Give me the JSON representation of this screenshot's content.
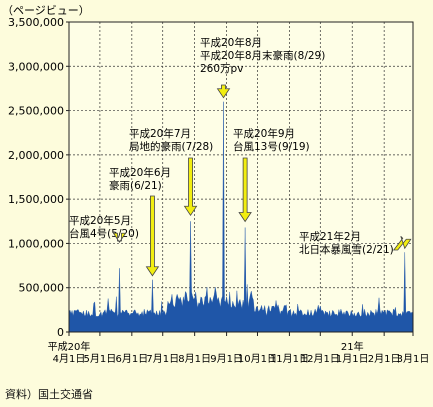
{
  "source": "資料）国土交通省",
  "chart_data": {
    "type": "area",
    "ylabel": "（ページビュー）",
    "ylim": [
      0,
      3500000
    ],
    "yticks": [
      0,
      500000,
      1000000,
      1500000,
      2000000,
      2500000,
      3000000,
      3500000
    ],
    "ytick_labels": [
      "0",
      "500,000",
      "1,000,000",
      "1,500,000",
      "2,000,000",
      "2,500,000",
      "3,000,000",
      "3,500,000"
    ],
    "grid": true,
    "series_color": "#1f56a8",
    "arrow_color": "#f2ee10",
    "months": [
      "4月1日",
      "5月1日",
      "6月1日",
      "7月1日",
      "8月1日",
      "9月1日",
      "10月1日",
      "11月1日",
      "12月1日",
      "1月1日",
      "2月1日",
      "3月1日"
    ],
    "year_labels": [
      {
        "month_index": 0,
        "text": "平成20年"
      },
      {
        "month_index": 9,
        "text": "21年"
      }
    ],
    "peaks": [
      {
        "date": "2008-05-20",
        "value": 720000
      },
      {
        "date": "2008-06-21",
        "value": 590000
      },
      {
        "date": "2008-07-28",
        "value": 1250000
      },
      {
        "date": "2008-08-29",
        "value": 2600000
      },
      {
        "date": "2008-09-19",
        "value": 1180000
      },
      {
        "date": "2009-02-21",
        "value": 900000
      }
    ],
    "annotations": [
      {
        "lines": [
          "平成20年5月",
          "台風4号(5/20)"
        ],
        "date": "2008-05-20",
        "value": 720000
      },
      {
        "lines": [
          "平成20年6月",
          "豪雨(6/21)"
        ],
        "date": "2008-06-21",
        "value": 590000
      },
      {
        "lines": [
          "平成20年7月",
          "局地的豪雨(7/28)"
        ],
        "date": "2008-07-28",
        "value": 1250000
      },
      {
        "lines": [
          "平成20年8月",
          "平成20年8月末豪雨(8/29)",
          "260万pv"
        ],
        "date": "2008-08-29",
        "value": 2600000
      },
      {
        "lines": [
          "平成20年9月",
          "台風13号(9/19)"
        ],
        "date": "2008-09-19",
        "value": 1180000
      },
      {
        "lines": [
          "平成21年2月",
          "北日本暴風雪(2/21)"
        ],
        "date": "2009-02-21",
        "value": 900000
      }
    ]
  }
}
